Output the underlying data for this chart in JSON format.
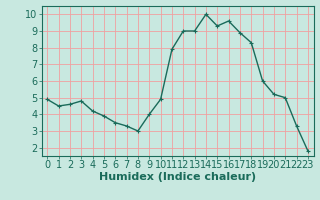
{
  "x": [
    0,
    1,
    2,
    3,
    4,
    5,
    6,
    7,
    8,
    9,
    10,
    11,
    12,
    13,
    14,
    15,
    16,
    17,
    18,
    19,
    20,
    21,
    22,
    23
  ],
  "y": [
    4.9,
    4.5,
    4.6,
    4.8,
    4.2,
    3.9,
    3.5,
    3.3,
    3.0,
    4.0,
    4.9,
    7.9,
    9.0,
    9.0,
    10.0,
    9.3,
    9.6,
    8.9,
    8.3,
    6.0,
    5.2,
    5.0,
    3.3,
    1.8
  ],
  "line_color": "#1a6b5a",
  "marker": "+",
  "marker_size": 3,
  "line_width": 1.0,
  "bg_color": "#c8e8e0",
  "grid_color_major": "#f0a0a0",
  "grid_color_minor": "#c8e8e0",
  "xlabel": "Humidex (Indice chaleur)",
  "xlabel_fontsize": 8,
  "tick_fontsize": 7,
  "ylim": [
    1.5,
    10.5
  ],
  "xlim": [
    -0.5,
    23.5
  ],
  "yticks": [
    2,
    3,
    4,
    5,
    6,
    7,
    8,
    9,
    10
  ],
  "xticks": [
    0,
    1,
    2,
    3,
    4,
    5,
    6,
    7,
    8,
    9,
    10,
    11,
    12,
    13,
    14,
    15,
    16,
    17,
    18,
    19,
    20,
    21,
    22,
    23
  ]
}
